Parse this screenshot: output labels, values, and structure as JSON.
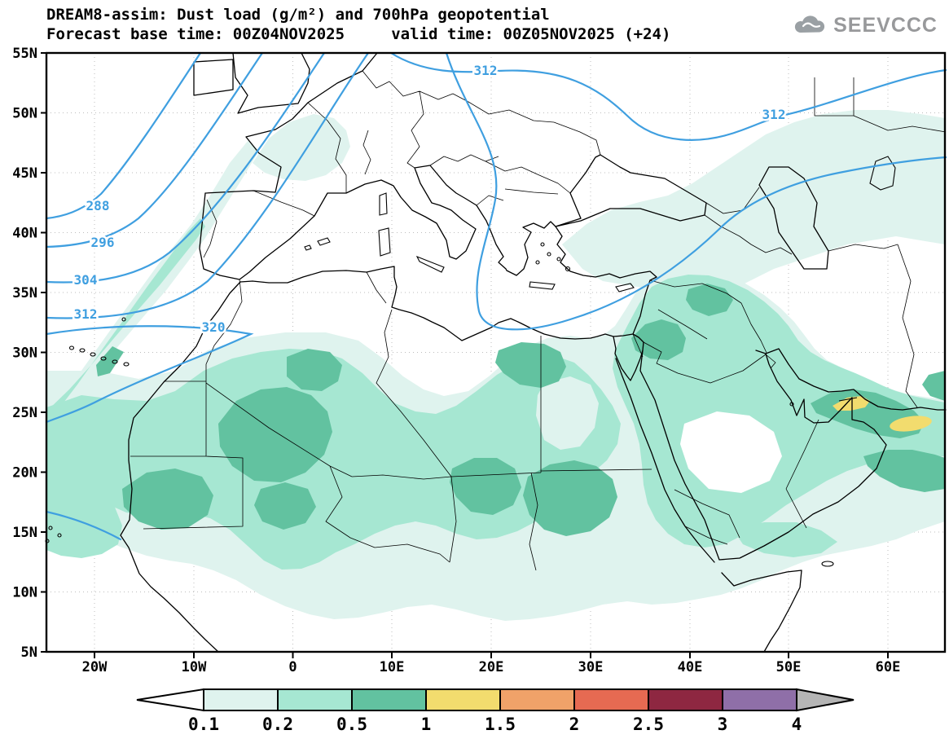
{
  "header": {
    "title_line1": "DREAM8-assim: Dust load (g/m²) and 700hPa geopotential",
    "title_line2": "Forecast base time: 00Z04NOV2025     valid time: 00Z05NOV2025 (+24)",
    "logo_text": "SEEVCCC"
  },
  "axes": {
    "lat_labels": [
      "55N",
      "50N",
      "45N",
      "40N",
      "35N",
      "30N",
      "25N",
      "20N",
      "15N",
      "10N",
      "5N"
    ],
    "lon_labels": [
      "20W",
      "10W",
      "0",
      "10E",
      "20E",
      "30E",
      "40E",
      "50E",
      "60E"
    ]
  },
  "contours": {
    "field": "700hPa geopotential",
    "labels": [
      "288",
      "296",
      "304",
      "312",
      "320",
      "312",
      "312"
    ],
    "color": "#3f9fe0"
  },
  "colorbar": {
    "unit": "g/m²",
    "tick_labels": [
      "0.1",
      "0.2",
      "0.5",
      "1",
      "1.5",
      "2",
      "2.5",
      "3",
      "4"
    ],
    "segment_colors": [
      "#dff3ee",
      "#a6e7d2",
      "#62c2a0",
      "#f2dc6e",
      "#f0a269",
      "#e66a52",
      "#8e2741",
      "#8f6fa8"
    ],
    "left_arrow_color": "#ffffff",
    "right_arrow_color": "#b5b5b5"
  },
  "chart_data": {
    "type": "heatmap",
    "title": "DREAM8-assim: Dust load (g/m²) and 700hPa geopotential",
    "subtitle": "Forecast base time: 00Z04NOV2025  valid time: 00Z05NOV2025 (+24)",
    "x_axis": {
      "label": "longitude",
      "ticks": [
        "20W",
        "10W",
        "0",
        "10E",
        "20E",
        "30E",
        "40E",
        "50E",
        "60E"
      ]
    },
    "y_axis": {
      "label": "latitude",
      "ticks": [
        "55N",
        "50N",
        "45N",
        "40N",
        "35N",
        "30N",
        "25N",
        "20N",
        "15N",
        "10N",
        "5N"
      ]
    },
    "dust_load_levels_g_m2": [
      0.1,
      0.2,
      0.5,
      1,
      1.5,
      2,
      2.5,
      3,
      4
    ],
    "geopotential_contours_dam": [
      288,
      296,
      304,
      312,
      320
    ],
    "notable_features": [
      "Broad 0.1-1 g/m² dust plume spanning the Sahara and Sahel from the Atlantic coast to the Red Sea",
      "Dust maxima 0.5-1 g/m² over Mali/southern Algeria, Niger/Chad, Sudan, coastal Libya/Egypt and the Levant",
      "Localized 1-1.5 g/m² maxima near the Strait of Hormuz and the Gulf of Oman",
      "Elongated dust streak over the eastern Atlantic extending northeast toward Iberia and France",
      "Light dust over Anatolia, the Caucasus and the Caspian region",
      "700hPa trough over the eastern Atlantic / western Europe (contours 288-320), 312 contour looping through the central Mediterranean"
    ]
  }
}
